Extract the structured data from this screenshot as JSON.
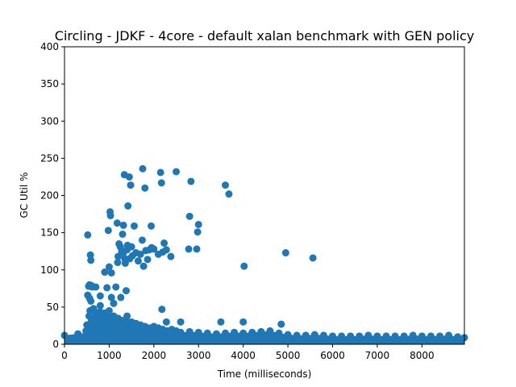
{
  "chart_data": {
    "type": "scatter",
    "title": "Circling - JDKF - 4core -  default xalan benchmark with GEN policy",
    "xlabel": "Time (milliseconds)",
    "ylabel": "GC Util %",
    "xlim": [
      0,
      8950
    ],
    "ylim": [
      0,
      400
    ],
    "xticks": [
      0,
      1000,
      2000,
      3000,
      4000,
      5000,
      6000,
      7000,
      8000
    ],
    "yticks": [
      0,
      50,
      100,
      150,
      200,
      250,
      300,
      350,
      400
    ],
    "grid": false,
    "legend": "none",
    "marker_color": "#1f77b4",
    "series": [
      {
        "points": [
          [
            520,
            147
          ],
          [
            580,
            120
          ],
          [
            590,
            113
          ],
          [
            540,
            78
          ],
          [
            560,
            80
          ],
          [
            600,
            79
          ],
          [
            520,
            66
          ],
          [
            560,
            62
          ],
          [
            590,
            58
          ],
          [
            570,
            45
          ],
          [
            620,
            77
          ],
          [
            700,
            77
          ],
          [
            800,
            65
          ],
          [
            900,
            97
          ],
          [
            950,
            76
          ],
          [
            980,
            153
          ],
          [
            1000,
            104
          ],
          [
            1020,
            178
          ],
          [
            1030,
            173
          ],
          [
            1050,
            96
          ],
          [
            1050,
            63
          ],
          [
            1100,
            55
          ],
          [
            1150,
            77
          ],
          [
            1180,
            163
          ],
          [
            1190,
            110
          ],
          [
            1200,
            118
          ],
          [
            1220,
            135
          ],
          [
            1250,
            131
          ],
          [
            1260,
            63
          ],
          [
            1280,
            125
          ],
          [
            1300,
            148
          ],
          [
            1310,
            122
          ],
          [
            1320,
            160
          ],
          [
            1340,
            228
          ],
          [
            1350,
            115
          ],
          [
            1360,
            109
          ],
          [
            1380,
            72
          ],
          [
            1400,
            127
          ],
          [
            1410,
            133
          ],
          [
            1420,
            186
          ],
          [
            1450,
            225
          ],
          [
            1460,
            115
          ],
          [
            1480,
            214
          ],
          [
            1500,
            131
          ],
          [
            1520,
            119
          ],
          [
            1560,
            159
          ],
          [
            1600,
            123
          ],
          [
            1650,
            112
          ],
          [
            1700,
            121
          ],
          [
            1740,
            140
          ],
          [
            1750,
            236
          ],
          [
            1770,
            105
          ],
          [
            1800,
            210
          ],
          [
            1820,
            126
          ],
          [
            1860,
            114
          ],
          [
            1900,
            127
          ],
          [
            1940,
            159
          ],
          [
            1950,
            130
          ],
          [
            2000,
            128
          ],
          [
            2100,
            121
          ],
          [
            2150,
            231
          ],
          [
            2170,
            217
          ],
          [
            2180,
            47
          ],
          [
            2200,
            124
          ],
          [
            2230,
            136
          ],
          [
            2280,
            127
          ],
          [
            2380,
            118
          ],
          [
            2500,
            232
          ],
          [
            2780,
            128
          ],
          [
            2800,
            172
          ],
          [
            2830,
            219
          ],
          [
            2960,
            128
          ],
          [
            2980,
            151
          ],
          [
            3000,
            161
          ],
          [
            3600,
            214
          ],
          [
            3680,
            202
          ],
          [
            4020,
            105
          ],
          [
            4950,
            123
          ],
          [
            5560,
            116
          ],
          [
            4000,
            30
          ],
          [
            3500,
            30
          ],
          [
            4850,
            27
          ],
          [
            2600,
            30
          ],
          [
            2280,
            30
          ]
        ],
        "baseline_band": [
          [
            0,
            12
          ],
          [
            300,
            14
          ],
          [
            400,
            10
          ],
          [
            480,
            18
          ],
          [
            500,
            26
          ],
          [
            550,
            38
          ],
          [
            600,
            35
          ],
          [
            650,
            48
          ],
          [
            700,
            43
          ],
          [
            800,
            52
          ],
          [
            900,
            42
          ],
          [
            1000,
            45
          ],
          [
            1100,
            38
          ],
          [
            1200,
            35
          ],
          [
            1300,
            32
          ],
          [
            1400,
            38
          ],
          [
            1500,
            30
          ],
          [
            1600,
            28
          ],
          [
            1700,
            26
          ],
          [
            1800,
            24
          ],
          [
            1900,
            22
          ],
          [
            2000,
            24
          ],
          [
            2100,
            22
          ],
          [
            2200,
            20
          ],
          [
            2300,
            18
          ],
          [
            2400,
            20
          ],
          [
            2500,
            18
          ],
          [
            2600,
            16
          ],
          [
            2800,
            17
          ],
          [
            3000,
            16
          ],
          [
            3200,
            15
          ],
          [
            3400,
            14
          ],
          [
            3600,
            15
          ],
          [
            3800,
            16
          ],
          [
            4000,
            15
          ],
          [
            4200,
            16
          ],
          [
            4400,
            17
          ],
          [
            4600,
            18
          ],
          [
            4800,
            15
          ],
          [
            5000,
            13
          ],
          [
            5200,
            12
          ],
          [
            5400,
            12
          ],
          [
            5600,
            13
          ],
          [
            5800,
            12
          ],
          [
            6000,
            11
          ],
          [
            6200,
            11
          ],
          [
            6400,
            11
          ],
          [
            6600,
            11
          ],
          [
            6800,
            12
          ],
          [
            7000,
            11
          ],
          [
            7200,
            11
          ],
          [
            7400,
            11
          ],
          [
            7600,
            11
          ],
          [
            7800,
            12
          ],
          [
            8000,
            11
          ],
          [
            8200,
            11
          ],
          [
            8400,
            11
          ],
          [
            8600,
            12
          ],
          [
            8800,
            10
          ],
          [
            8950,
            9
          ]
        ]
      }
    ]
  }
}
